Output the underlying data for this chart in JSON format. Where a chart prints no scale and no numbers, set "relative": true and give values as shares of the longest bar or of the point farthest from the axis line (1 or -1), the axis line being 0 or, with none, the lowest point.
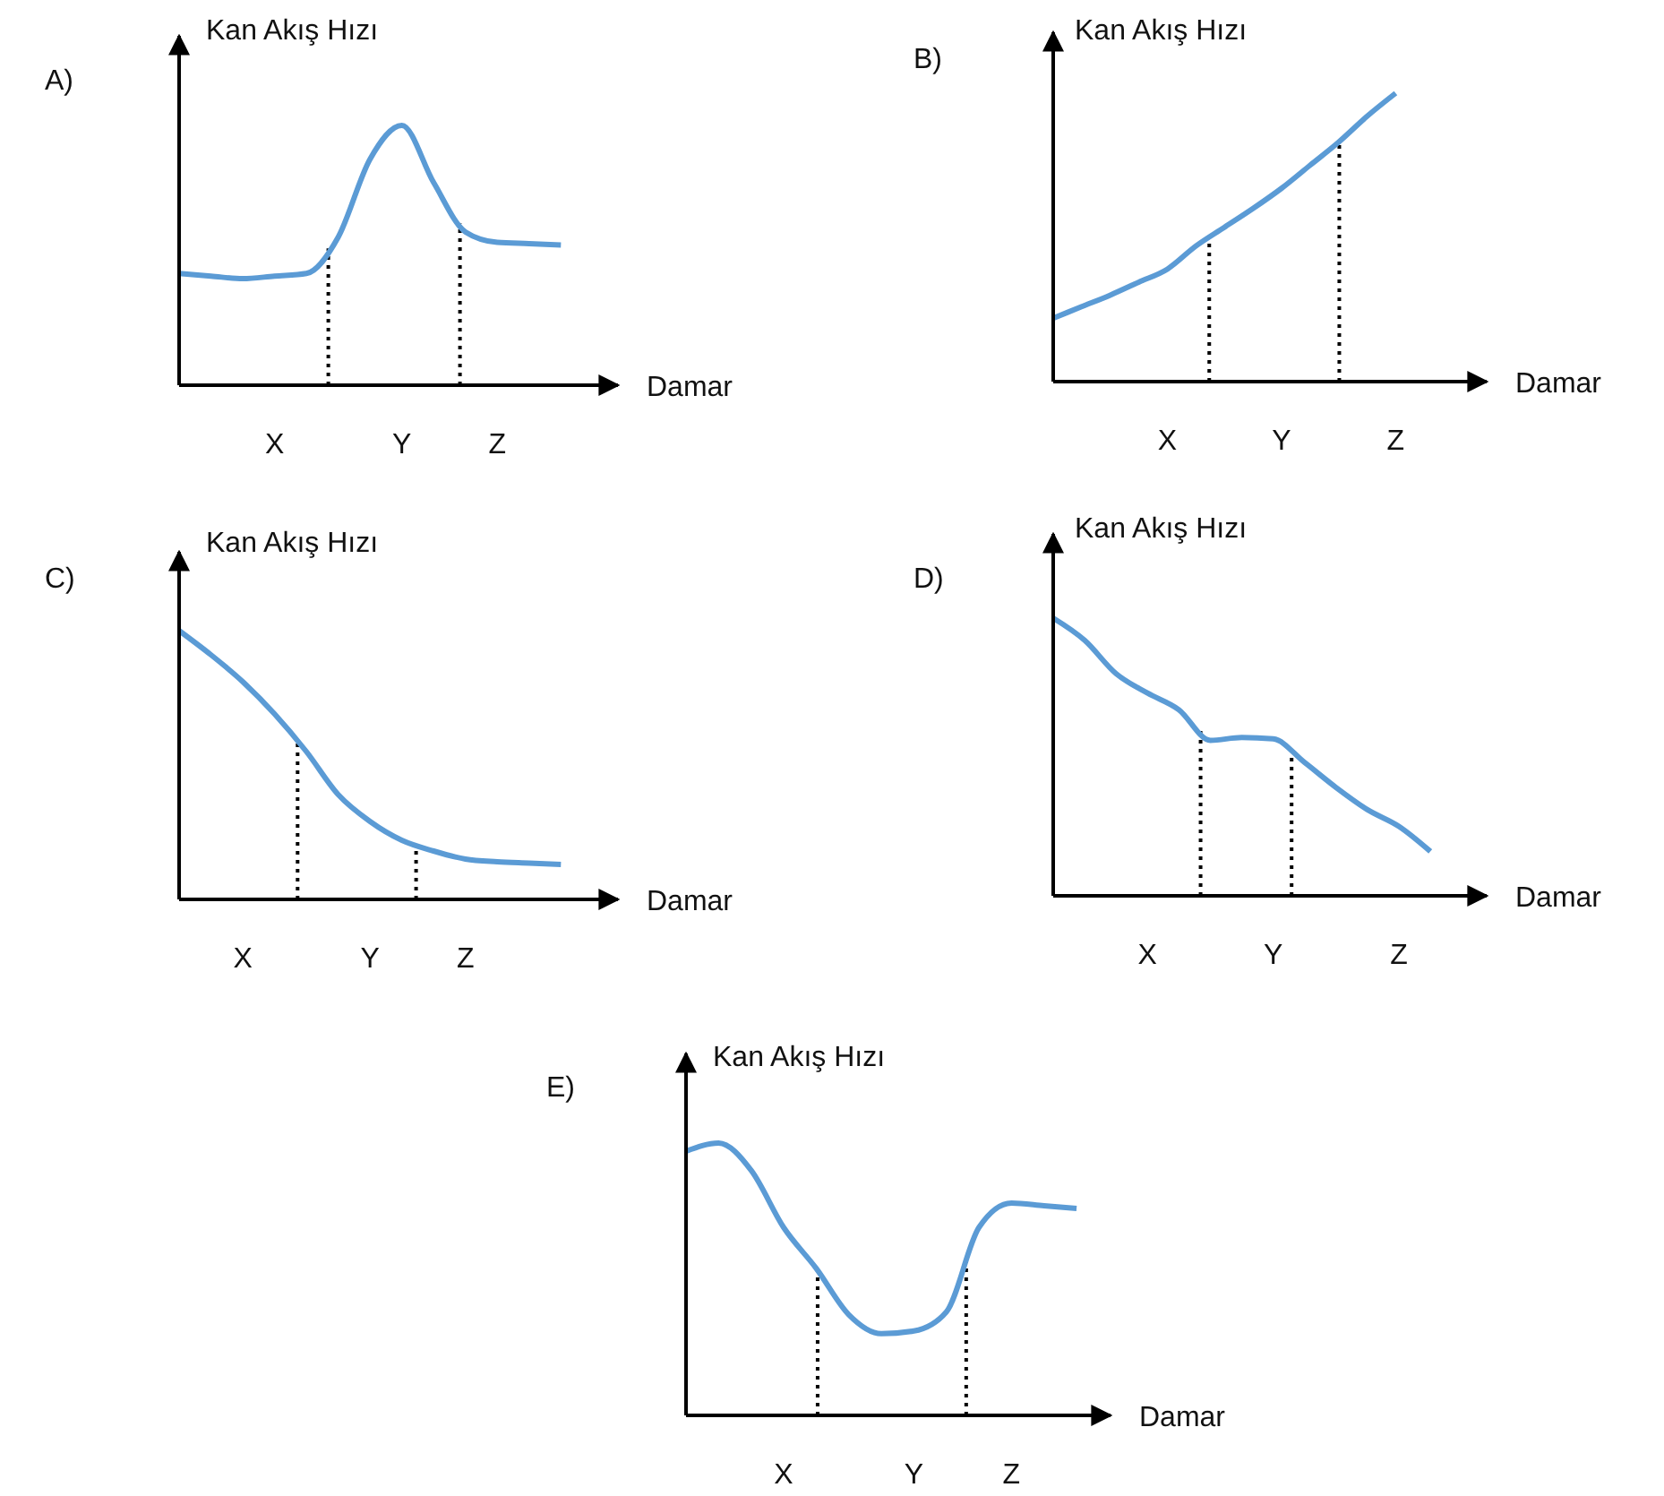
{
  "chart_data": [
    {
      "type": "line",
      "title": "A)",
      "ylabel": "Kan Akış Hızı",
      "xlabel": "Damar",
      "relative": true,
      "tick_labels": "x",
      "color": "#5b9bd5",
      "categories": [
        null,
        null,
        null,
        "X",
        null,
        null,
        null,
        "Y",
        null,
        null,
        "Z",
        null,
        null
      ],
      "values": [
        0.43,
        0.42,
        0.41,
        0.42,
        0.43,
        0.57,
        0.87,
        1,
        0.78,
        0.59,
        0.55,
        0.545,
        0.54
      ]
    },
    {
      "type": "line",
      "title": "B)",
      "ylabel": "Kan Akış Hızı",
      "xlabel": "Damar",
      "relative": true,
      "tick_labels": "x",
      "color": "#5b9bd5",
      "categories": [
        null,
        null,
        null,
        null,
        "X",
        null,
        null,
        null,
        "Y",
        null,
        null,
        null,
        "Z"
      ],
      "values": [
        0.22,
        0.26,
        0.3,
        0.345,
        0.39,
        0.47,
        0.535,
        0.6,
        0.67,
        0.75,
        0.83,
        0.92,
        1
      ]
    },
    {
      "type": "line",
      "title": "C)",
      "ylabel": "Kan Akış Hızı",
      "xlabel": "Damar",
      "relative": true,
      "tick_labels": "x",
      "color": "#5b9bd5",
      "categories": [
        null,
        null,
        "X",
        null,
        null,
        null,
        "Y",
        null,
        null,
        "Z",
        null,
        null,
        null
      ],
      "values": [
        1,
        0.91,
        0.81,
        0.69,
        0.55,
        0.39,
        0.29,
        0.22,
        0.18,
        0.15,
        0.14,
        0.135,
        0.13
      ]
    },
    {
      "type": "line",
      "title": "D)",
      "ylabel": "Kan Akış Hızı",
      "xlabel": "Damar",
      "relative": true,
      "tick_labels": "x",
      "color": "#5b9bd5",
      "categories": [
        null,
        null,
        null,
        "X",
        null,
        null,
        null,
        "Y",
        null,
        null,
        null,
        "Z",
        null
      ],
      "values": [
        1,
        0.92,
        0.8,
        0.73,
        0.67,
        0.56,
        0.57,
        0.565,
        0.48,
        0.39,
        0.31,
        0.25,
        0.16
      ]
    },
    {
      "type": "line",
      "title": "E)",
      "ylabel": "Kan Akış Hızı",
      "xlabel": "Damar",
      "relative": true,
      "tick_labels": "x",
      "color": "#5b9bd5",
      "categories": [
        null,
        null,
        null,
        "X",
        null,
        null,
        null,
        "Y",
        null,
        null,
        "Z",
        null,
        null
      ],
      "values": [
        0.97,
        1,
        0.9,
        0.69,
        0.54,
        0.37,
        0.3,
        0.31,
        0.38,
        0.69,
        0.78,
        0.77,
        0.76
      ]
    }
  ]
}
